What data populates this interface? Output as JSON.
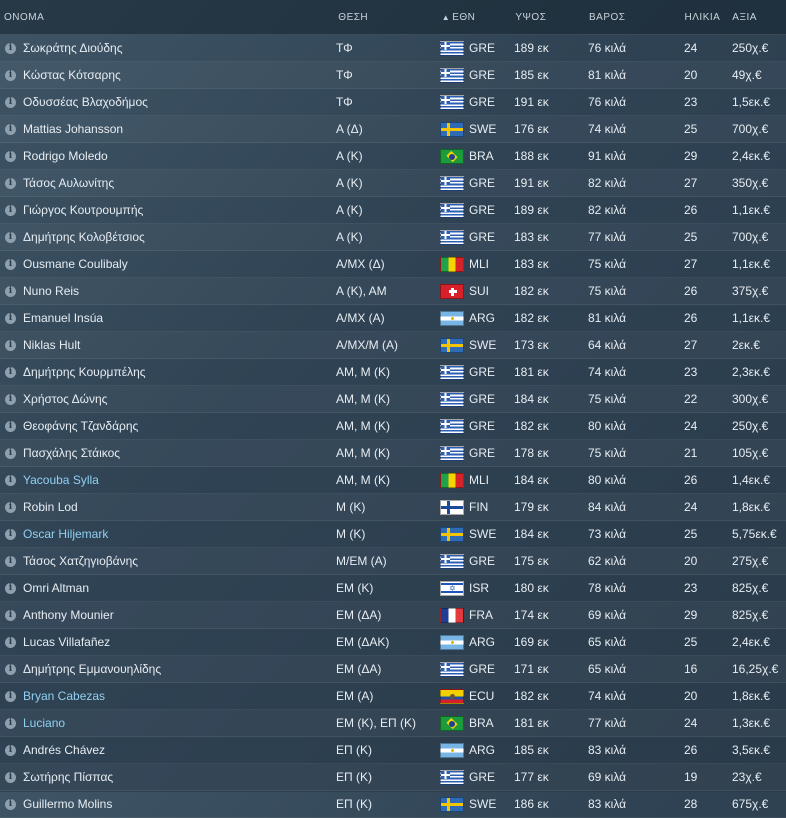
{
  "columns": {
    "name": "ΟΝΟΜΑ",
    "position": "ΘΕΣΗ",
    "nationality": "ΕΘΝ",
    "height": "ΥΨΟΣ",
    "weight": "ΒΑΡΟΣ",
    "age": "ΗΛΙΚΙΑ",
    "value": "ΑΞΙΑ"
  },
  "sort_icon": "triangle-up-icon",
  "players": [
    {
      "name": "Σωκράτης Διούδης",
      "pos": "ΤΦ",
      "nat": "GRE",
      "height": "189 εκ",
      "weight": "76 κιλά",
      "age": "24",
      "value": "250χ.€",
      "link": false
    },
    {
      "name": "Κώστας Κότσαρης",
      "pos": "ΤΦ",
      "nat": "GRE",
      "height": "185 εκ",
      "weight": "81 κιλά",
      "age": "20",
      "value": "49χ.€",
      "link": false
    },
    {
      "name": "Οδυσσέας Βλαχοδήμος",
      "pos": "ΤΦ",
      "nat": "GRE",
      "height": "191 εκ",
      "weight": "76 κιλά",
      "age": "23",
      "value": "1,5εκ.€",
      "link": false
    },
    {
      "name": "Mattias Johansson",
      "pos": "Α (Δ)",
      "nat": "SWE",
      "height": "176 εκ",
      "weight": "74 κιλά",
      "age": "25",
      "value": "700χ.€",
      "link": false
    },
    {
      "name": "Rodrigo Moledo",
      "pos": "Α (Κ)",
      "nat": "BRA",
      "height": "188 εκ",
      "weight": "91 κιλά",
      "age": "29",
      "value": "2,4εκ.€",
      "link": false
    },
    {
      "name": "Τάσος Αυλωνίτης",
      "pos": "Α (Κ)",
      "nat": "GRE",
      "height": "191 εκ",
      "weight": "82 κιλά",
      "age": "27",
      "value": "350χ.€",
      "link": false
    },
    {
      "name": "Γιώργος Κουτρουμπής",
      "pos": "Α (Κ)",
      "nat": "GRE",
      "height": "189 εκ",
      "weight": "82 κιλά",
      "age": "26",
      "value": "1,1εκ.€",
      "link": false
    },
    {
      "name": "Δημήτρης Κολοβέτσιος",
      "pos": "Α (Κ)",
      "nat": "GRE",
      "height": "183 εκ",
      "weight": "77 κιλά",
      "age": "25",
      "value": "700χ.€",
      "link": false
    },
    {
      "name": "Ousmane Coulibaly",
      "pos": "Α/ΜΧ (Δ)",
      "nat": "MLI",
      "height": "183 εκ",
      "weight": "75 κιλά",
      "age": "27",
      "value": "1,1εκ.€",
      "link": false
    },
    {
      "name": "Nuno Reis",
      "pos": "Α (Κ), ΑΜ",
      "nat": "SUI",
      "height": "182 εκ",
      "weight": "75 κιλά",
      "age": "26",
      "value": "375χ.€",
      "link": false
    },
    {
      "name": "Emanuel Insúa",
      "pos": "Α/ΜΧ (Α)",
      "nat": "ARG",
      "height": "182 εκ",
      "weight": "81 κιλά",
      "age": "26",
      "value": "1,1εκ.€",
      "link": false
    },
    {
      "name": "Niklas Hult",
      "pos": "Α/ΜΧ/Μ (Α)",
      "nat": "SWE",
      "height": "173 εκ",
      "weight": "64 κιλά",
      "age": "27",
      "value": "2εκ.€",
      "link": false
    },
    {
      "name": "Δημήτρης Κουρμπέλης",
      "pos": "ΑΜ, Μ (Κ)",
      "nat": "GRE",
      "height": "181 εκ",
      "weight": "74 κιλά",
      "age": "23",
      "value": "2,3εκ.€",
      "link": false
    },
    {
      "name": "Χρήστος Δώνης",
      "pos": "ΑΜ, Μ (Κ)",
      "nat": "GRE",
      "height": "184 εκ",
      "weight": "75 κιλά",
      "age": "22",
      "value": "300χ.€",
      "link": false
    },
    {
      "name": "Θεοφάνης Τζανδάρης",
      "pos": "ΑΜ, Μ (Κ)",
      "nat": "GRE",
      "height": "182 εκ",
      "weight": "80 κιλά",
      "age": "24",
      "value": "250χ.€",
      "link": false
    },
    {
      "name": "Πασχάλης Στάικος",
      "pos": "ΑΜ, Μ (Κ)",
      "nat": "GRE",
      "height": "178 εκ",
      "weight": "75 κιλά",
      "age": "21",
      "value": "105χ.€",
      "link": false
    },
    {
      "name": "Yacouba Sylla",
      "pos": "ΑΜ, Μ (Κ)",
      "nat": "MLI",
      "height": "184 εκ",
      "weight": "80 κιλά",
      "age": "26",
      "value": "1,4εκ.€",
      "link": true
    },
    {
      "name": "Robin Lod",
      "pos": "Μ (Κ)",
      "nat": "FIN",
      "height": "179 εκ",
      "weight": "84 κιλά",
      "age": "24",
      "value": "1,8εκ.€",
      "link": false
    },
    {
      "name": "Oscar Hiljemark",
      "pos": "Μ (Κ)",
      "nat": "SWE",
      "height": "184 εκ",
      "weight": "73 κιλά",
      "age": "25",
      "value": "5,75εκ.€",
      "link": true
    },
    {
      "name": "Τάσος Χατζηγιοβάνης",
      "pos": "Μ/ΕΜ (Α)",
      "nat": "GRE",
      "height": "175 εκ",
      "weight": "62 κιλά",
      "age": "20",
      "value": "275χ.€",
      "link": false
    },
    {
      "name": "Omri Altman",
      "pos": "ΕΜ (Κ)",
      "nat": "ISR",
      "height": "180 εκ",
      "weight": "78 κιλά",
      "age": "23",
      "value": "825χ.€",
      "link": false
    },
    {
      "name": "Anthony Mounier",
      "pos": "ΕΜ (ΔΑ)",
      "nat": "FRA",
      "height": "174 εκ",
      "weight": "69 κιλά",
      "age": "29",
      "value": "825χ.€",
      "link": false
    },
    {
      "name": "Lucas Villafañez",
      "pos": "ΕΜ (ΔΑΚ)",
      "nat": "ARG",
      "height": "169 εκ",
      "weight": "65 κιλά",
      "age": "25",
      "value": "2,4εκ.€",
      "link": false
    },
    {
      "name": "Δημήτρης Εμμανουηλίδης",
      "pos": "ΕΜ (ΔΑ)",
      "nat": "GRE",
      "height": "171 εκ",
      "weight": "65 κιλά",
      "age": "16",
      "value": "16,25χ.€",
      "link": false
    },
    {
      "name": "Bryan Cabezas",
      "pos": "ΕΜ (Α)",
      "nat": "ECU",
      "height": "182 εκ",
      "weight": "74 κιλά",
      "age": "20",
      "value": "1,8εκ.€",
      "link": true
    },
    {
      "name": "Luciano",
      "pos": "ΕΜ (Κ), ΕΠ (Κ)",
      "nat": "BRA",
      "height": "181 εκ",
      "weight": "77 κιλά",
      "age": "24",
      "value": "1,3εκ.€",
      "link": true
    },
    {
      "name": "Andrés Chávez",
      "pos": "ΕΠ (Κ)",
      "nat": "ARG",
      "height": "185 εκ",
      "weight": "83 κιλά",
      "age": "26",
      "value": "3,5εκ.€",
      "link": false
    },
    {
      "name": "Σωτήρης Πίσπας",
      "pos": "ΕΠ (Κ)",
      "nat": "GRE",
      "height": "177 εκ",
      "weight": "69 κιλά",
      "age": "19",
      "value": "23χ.€",
      "link": false
    },
    {
      "name": "Guillermo Molins",
      "pos": "ΕΠ (Κ)",
      "nat": "SWE",
      "height": "186 εκ",
      "weight": "83 κιλά",
      "age": "28",
      "value": "675χ.€",
      "link": false
    }
  ]
}
